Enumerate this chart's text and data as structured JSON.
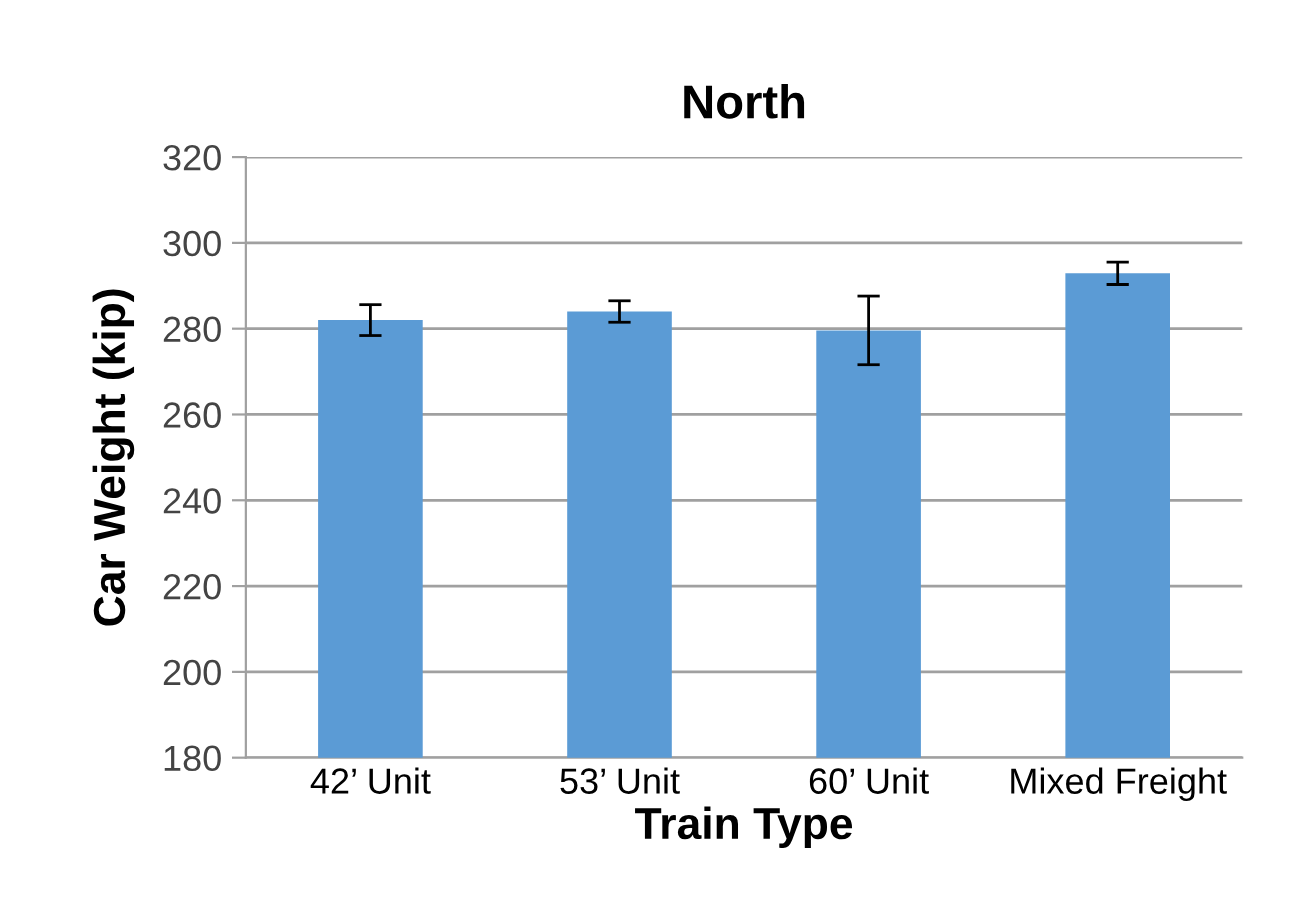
{
  "chart_data": {
    "type": "bar",
    "title": "North",
    "xlabel": "Train Type",
    "ylabel": "Car Weight (kip)",
    "categories": [
      "42’ Unit",
      "53’ Unit",
      "60’ Unit",
      "Mixed Freight"
    ],
    "values": [
      282,
      284,
      279.6,
      292.9
    ],
    "errors": [
      3.6,
      2.5,
      8,
      2.6
    ],
    "color": "#5b9bd5",
    "ylim": [
      180,
      320
    ],
    "yticks": [
      180,
      200,
      220,
      240,
      260,
      280,
      300,
      320
    ],
    "grid": "y",
    "legend": false
  }
}
